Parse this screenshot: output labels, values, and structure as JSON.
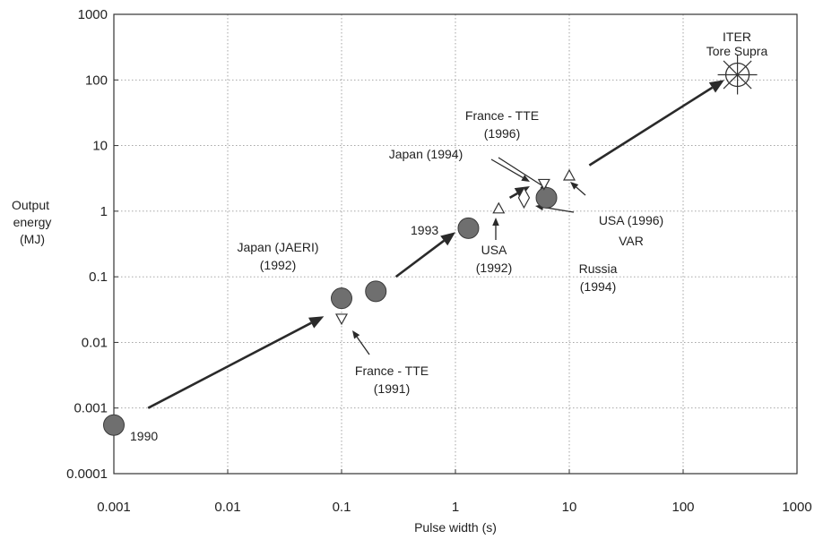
{
  "chart_data": {
    "type": "scatter",
    "title": "",
    "xlabel": "Pulse width (s)",
    "ylabel": [
      "Output",
      "energy",
      "(MJ)"
    ],
    "xscale": "log",
    "yscale": "log",
    "xlim": [
      0.001,
      1000
    ],
    "ylim": [
      0.0001,
      1000
    ],
    "x_ticks": [
      "0.001",
      "0.01",
      "0.1",
      "1",
      "10",
      "100",
      "1000"
    ],
    "y_ticks": [
      "0.0001",
      "0.001",
      "0.01",
      "0.1",
      "1",
      "10",
      "100",
      "1000"
    ],
    "grid": true,
    "marker_color": "#6f6f6f",
    "points": [
      {
        "x": 0.001,
        "y": 0.00055,
        "marker": "circle"
      },
      {
        "x": 0.1,
        "y": 0.047,
        "marker": "circle"
      },
      {
        "x": 0.2,
        "y": 0.06,
        "marker": "circle"
      },
      {
        "x": 1.3,
        "y": 0.55,
        "marker": "circle"
      },
      {
        "x": 6.3,
        "y": 1.6,
        "marker": "circle"
      },
      {
        "x": 0.1,
        "y": 0.023,
        "marker": "triangle-down"
      },
      {
        "x": 6.0,
        "y": 2.6,
        "marker": "triangle-down"
      },
      {
        "x": 2.4,
        "y": 1.1,
        "marker": "triangle-up"
      },
      {
        "x": 10,
        "y": 3.5,
        "marker": "triangle-up"
      },
      {
        "x": 4.0,
        "y": 1.6,
        "marker": "diamond"
      },
      {
        "x": 300,
        "y": 120,
        "marker": "star-circle"
      }
    ],
    "trend_arrows": [
      {
        "from": [
          0.002,
          0.001
        ],
        "to": [
          0.07,
          0.025
        ]
      },
      {
        "from": [
          0.3,
          0.1
        ],
        "to": [
          1.0,
          0.48
        ]
      },
      {
        "from": [
          3.0,
          1.6
        ],
        "to": [
          4.5,
          2.4
        ]
      },
      {
        "from": [
          15,
          5
        ],
        "to": [
          230,
          100
        ]
      }
    ],
    "annotations": [
      {
        "lines": [
          "1990"
        ]
      },
      {
        "lines": [
          "Japan (JAERI)",
          "(1992)"
        ]
      },
      {
        "lines": [
          "France - TTE",
          "(1991)"
        ]
      },
      {
        "lines": [
          "1993"
        ]
      },
      {
        "lines": [
          "USA",
          "(1992)"
        ]
      },
      {
        "lines": [
          "France - TTE",
          "(1996)"
        ]
      },
      {
        "lines": [
          "Japan (1994)"
        ]
      },
      {
        "lines": [
          "Russia",
          "(1994)"
        ]
      },
      {
        "lines": [
          "USA (1996)",
          "VAR"
        ]
      },
      {
        "lines": [
          "ITER",
          "Tore Supra"
        ]
      }
    ]
  }
}
